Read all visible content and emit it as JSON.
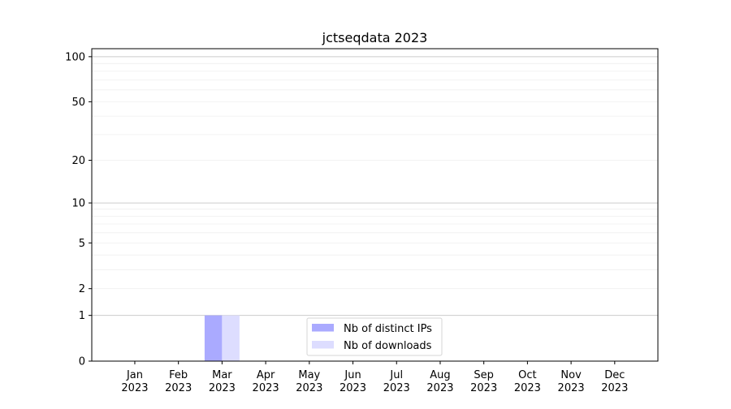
{
  "chart_data": {
    "type": "bar",
    "title": "jctseqdata 2023",
    "xlabel": "",
    "ylabel": "",
    "yscale": "log(1+y)",
    "ylim": [
      0,
      113
    ],
    "categories": [
      "Jan\n2023",
      "Feb\n2023",
      "Mar\n2023",
      "Apr\n2023",
      "May\n2023",
      "Jun\n2023",
      "Jul\n2023",
      "Aug\n2023",
      "Sep\n2023",
      "Oct\n2023",
      "Nov\n2023",
      "Dec\n2023"
    ],
    "yticks": [
      0,
      1,
      2,
      5,
      10,
      20,
      50,
      100
    ],
    "minor_yticks": [
      3,
      4,
      6,
      7,
      8,
      9,
      30,
      40,
      60,
      70,
      80,
      90
    ],
    "grid": true,
    "legend_placement": "lower-center",
    "series": [
      {
        "name": "Nb of distinct IPs",
        "color": "#aaaaff",
        "values": [
          0,
          0,
          1,
          0,
          0,
          0,
          0,
          0,
          0,
          0,
          0,
          0
        ]
      },
      {
        "name": "Nb of downloads",
        "color": "#ddddff",
        "values": [
          0,
          0,
          1,
          0,
          0,
          0,
          0,
          0,
          0,
          0,
          0,
          0
        ]
      }
    ]
  }
}
